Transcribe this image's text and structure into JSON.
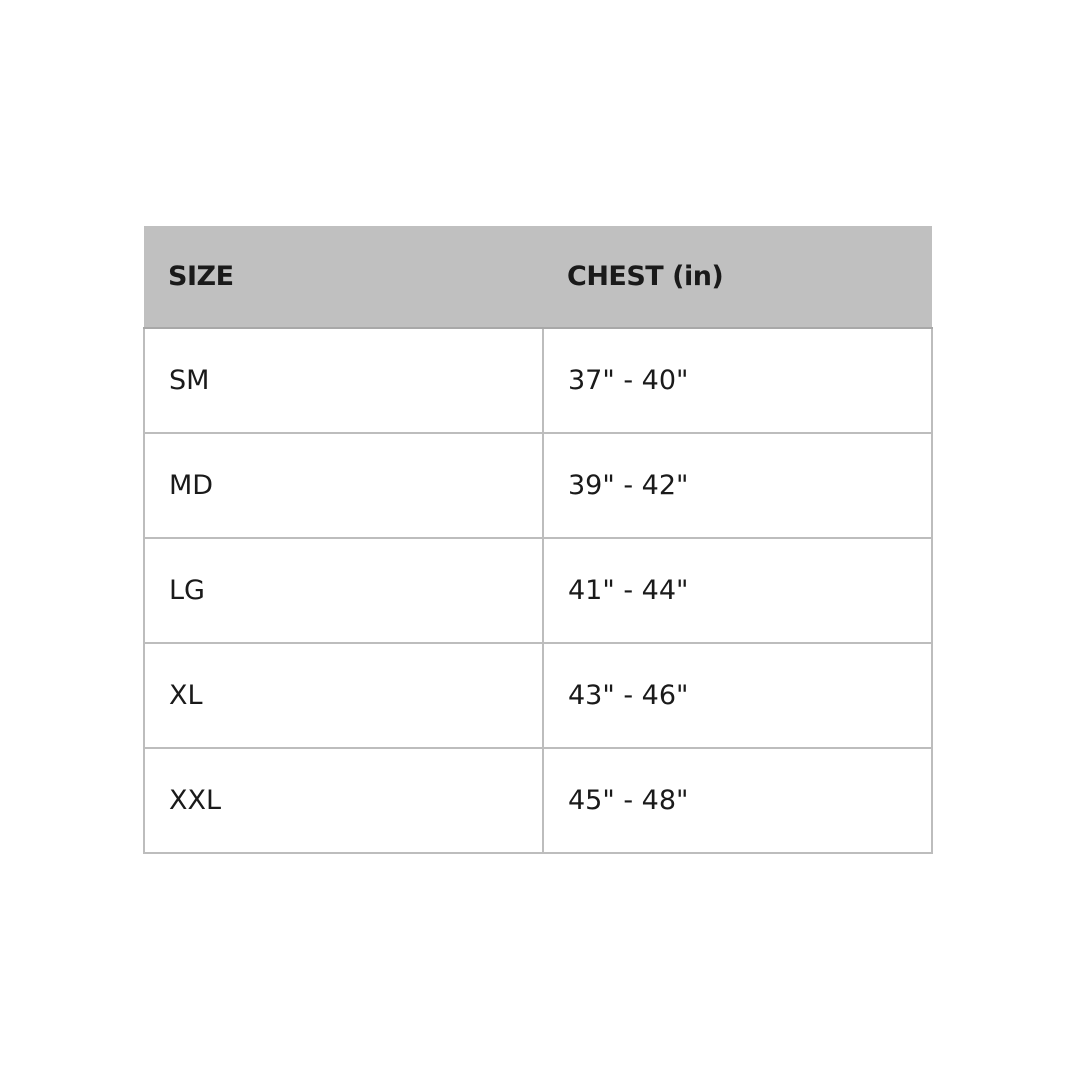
{
  "table": {
    "headers": [
      "SIZE",
      "CHEST (in)"
    ],
    "rows": [
      [
        "SM",
        "37\" - 40\""
      ],
      [
        "MD",
        "39\" - 42\""
      ],
      [
        "LG",
        "41\" - 44\""
      ],
      [
        "XL",
        "43\" - 46\""
      ],
      [
        "XXL",
        "45\" - 48\""
      ]
    ],
    "header_bg": "#c0c0c0"
  }
}
